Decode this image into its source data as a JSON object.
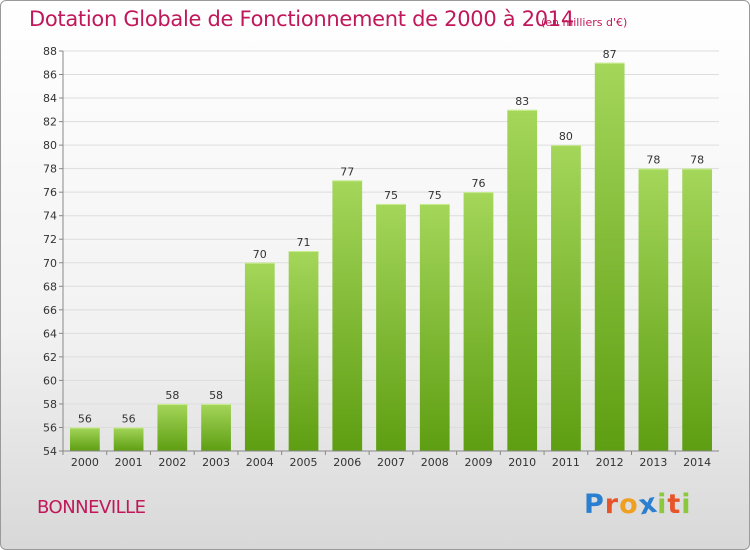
{
  "title": "Dotation Globale de Fonctionnement de 2000 à 2014",
  "unit": "(en milliers d'€)",
  "commune": "BONNEVILLE",
  "logo": {
    "letters": [
      "P",
      "r",
      "o",
      "x",
      "i",
      "t",
      "i"
    ],
    "colors": [
      "#2a7fd0",
      "#e8542a",
      "#f0a020",
      "#2a7fd0",
      "#8cc83c",
      "#e8542a",
      "#8cc83c"
    ]
  },
  "colors": {
    "bar_top": "#a4d65a",
    "bar_bottom": "#5e9e12",
    "text": "#c0185a",
    "grid": "#dddddd"
  },
  "chart_data": {
    "type": "bar",
    "title": "Dotation Globale de Fonctionnement de 2000 à 2014",
    "categories": [
      "2000",
      "2001",
      "2002",
      "2003",
      "2004",
      "2005",
      "2006",
      "2007",
      "2008",
      "2009",
      "2010",
      "2011",
      "2012",
      "2013",
      "2014"
    ],
    "values": [
      56,
      56,
      58,
      58,
      70,
      71,
      77,
      75,
      75,
      76,
      83,
      80,
      87,
      78,
      78
    ],
    "ylim": [
      54,
      88
    ],
    "yticks": [
      54,
      56,
      58,
      60,
      62,
      64,
      66,
      68,
      70,
      72,
      74,
      76,
      78,
      80,
      82,
      84,
      86,
      88
    ],
    "xlabel": "",
    "ylabel": "",
    "grid": true,
    "data_labels": true
  }
}
